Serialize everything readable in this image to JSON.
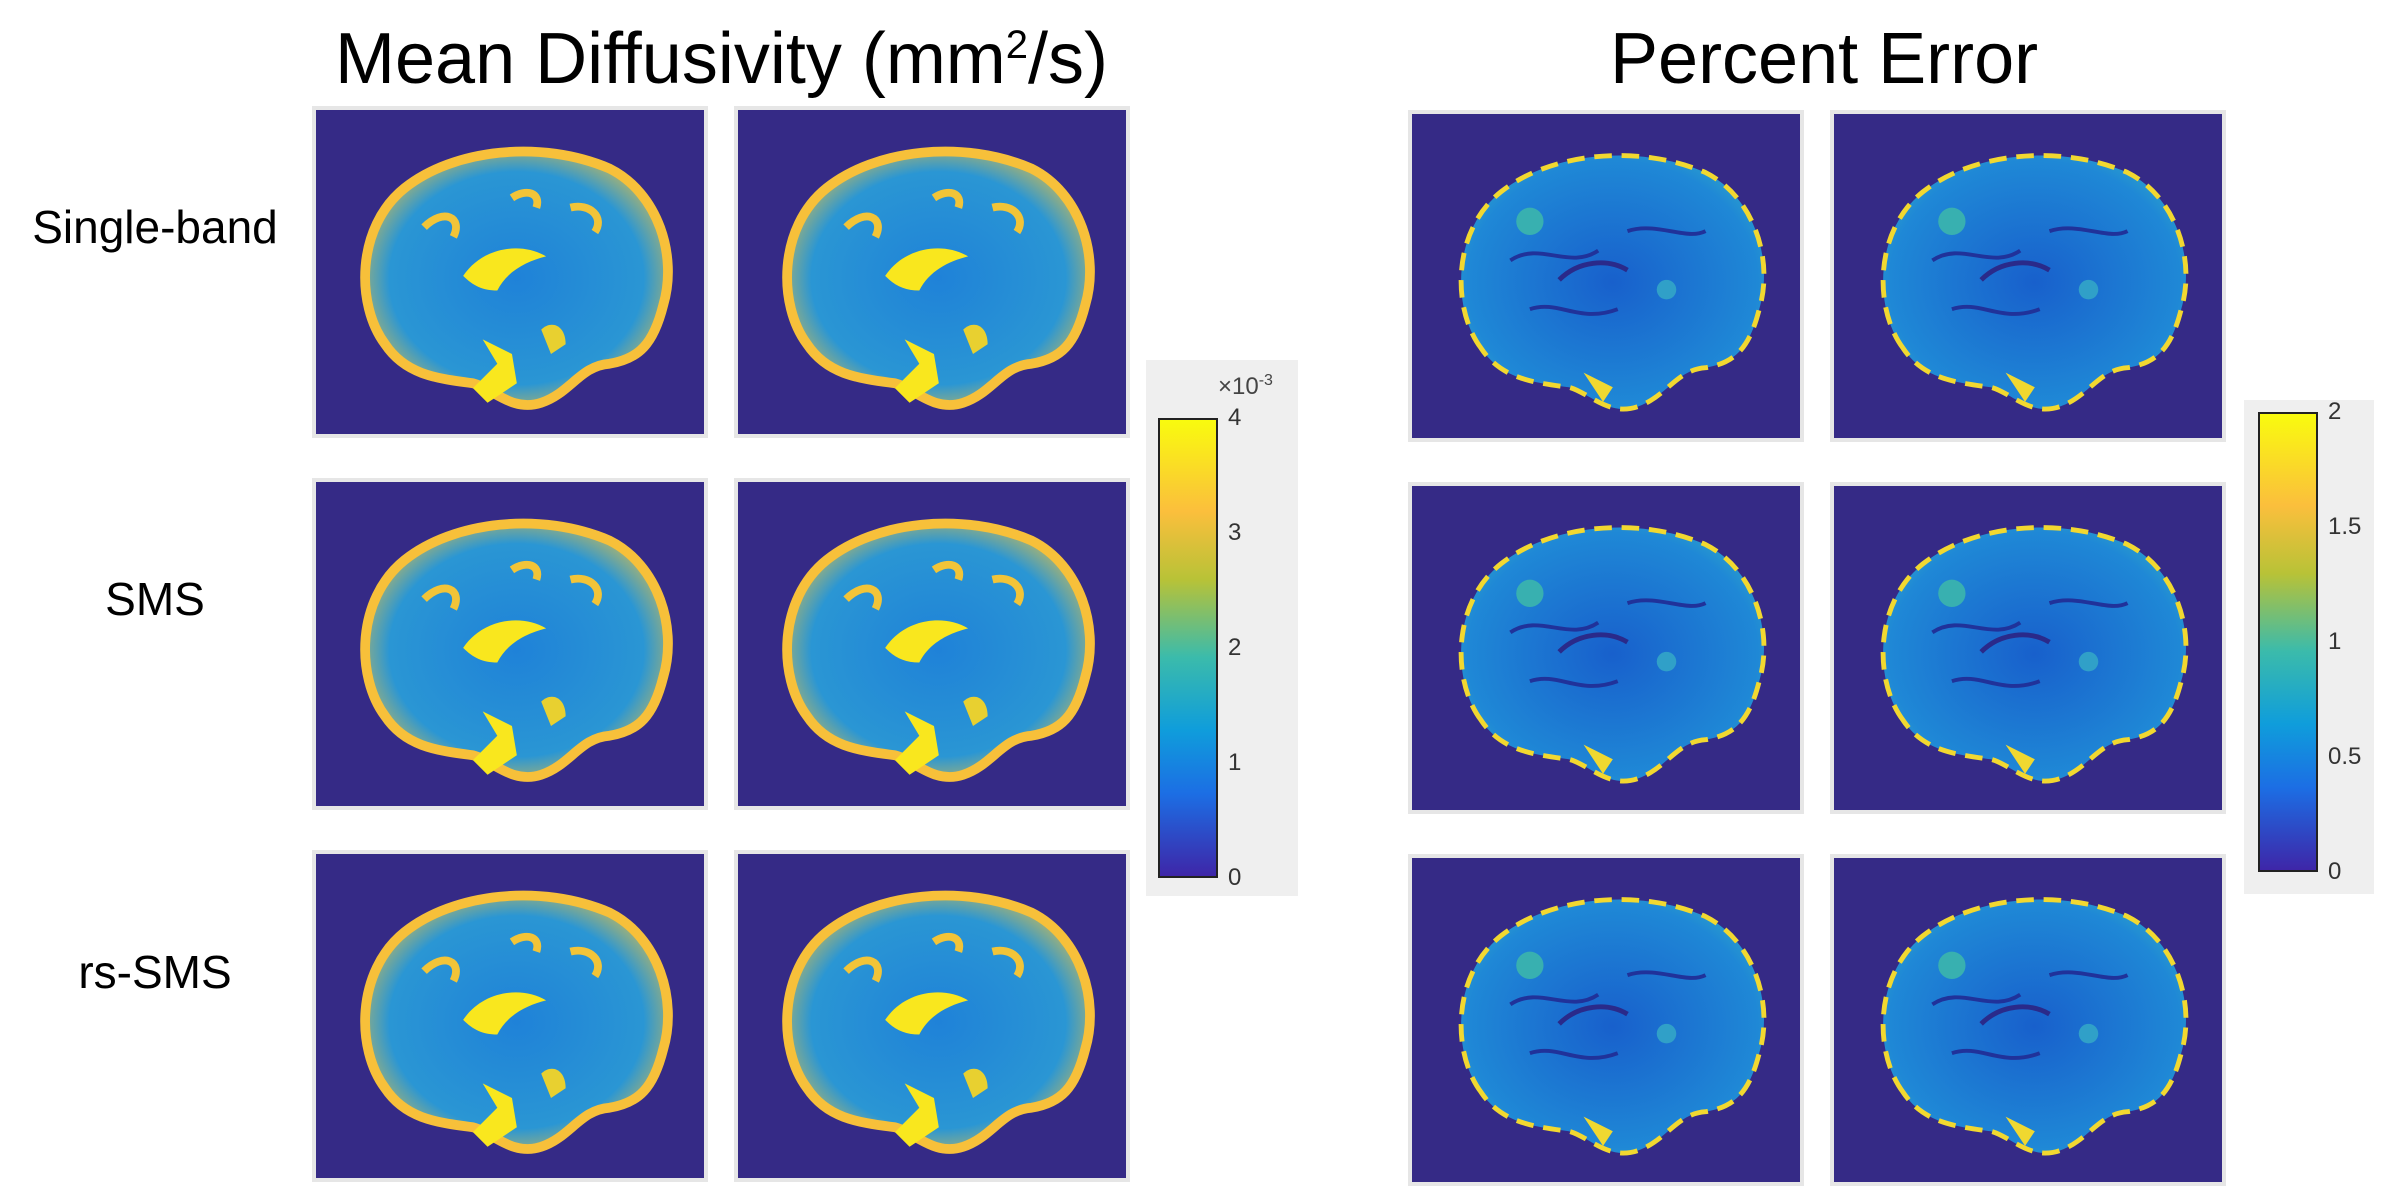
{
  "titles": {
    "mean_diffusivity_main": "Mean Diffusivity (mm",
    "mean_diffusivity_sup": "2",
    "mean_diffusivity_end": "/s)",
    "percent_error": "Percent Error"
  },
  "row_labels": [
    "Single-band",
    "SMS",
    "rs-SMS"
  ],
  "colorbar_md": {
    "exponent_prefix": "×10",
    "exponent_power": "-3",
    "ticks": [
      "4",
      "3",
      "2",
      "1",
      "0"
    ]
  },
  "colorbar_pe": {
    "ticks": [
      "2",
      "1.5",
      "1",
      "0.5",
      "0"
    ]
  },
  "colors": {
    "background": "#352a86",
    "parula_low": "#3e26a8",
    "parula_mid": "#1ca9c9",
    "parula_high": "#f9fb0e"
  }
}
